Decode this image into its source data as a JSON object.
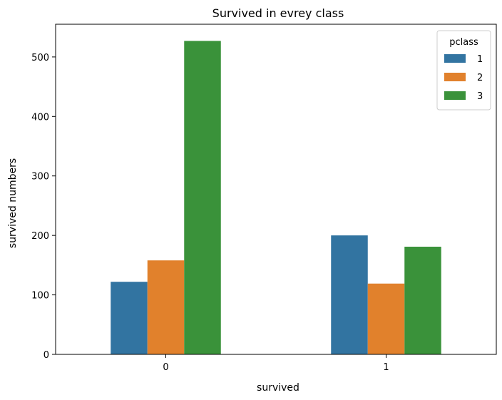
{
  "chart_data": {
    "type": "bar",
    "title": "Survived in evrey class",
    "xlabel": "survived",
    "ylabel": "survived numbers",
    "categories": [
      "0",
      "1"
    ],
    "series": [
      {
        "name": "1",
        "values": [
          122,
          200
        ],
        "color": "#3274a1"
      },
      {
        "name": "2",
        "values": [
          158,
          119
        ],
        "color": "#e1812c"
      },
      {
        "name": "3",
        "values": [
          527,
          181
        ],
        "color": "#3a923a"
      }
    ],
    "ylim": [
      0,
      555
    ],
    "yticks": [
      "0",
      "100",
      "200",
      "300",
      "400",
      "500"
    ],
    "grid": false,
    "legend": {
      "title": "pclass",
      "placement": "top-right"
    }
  }
}
